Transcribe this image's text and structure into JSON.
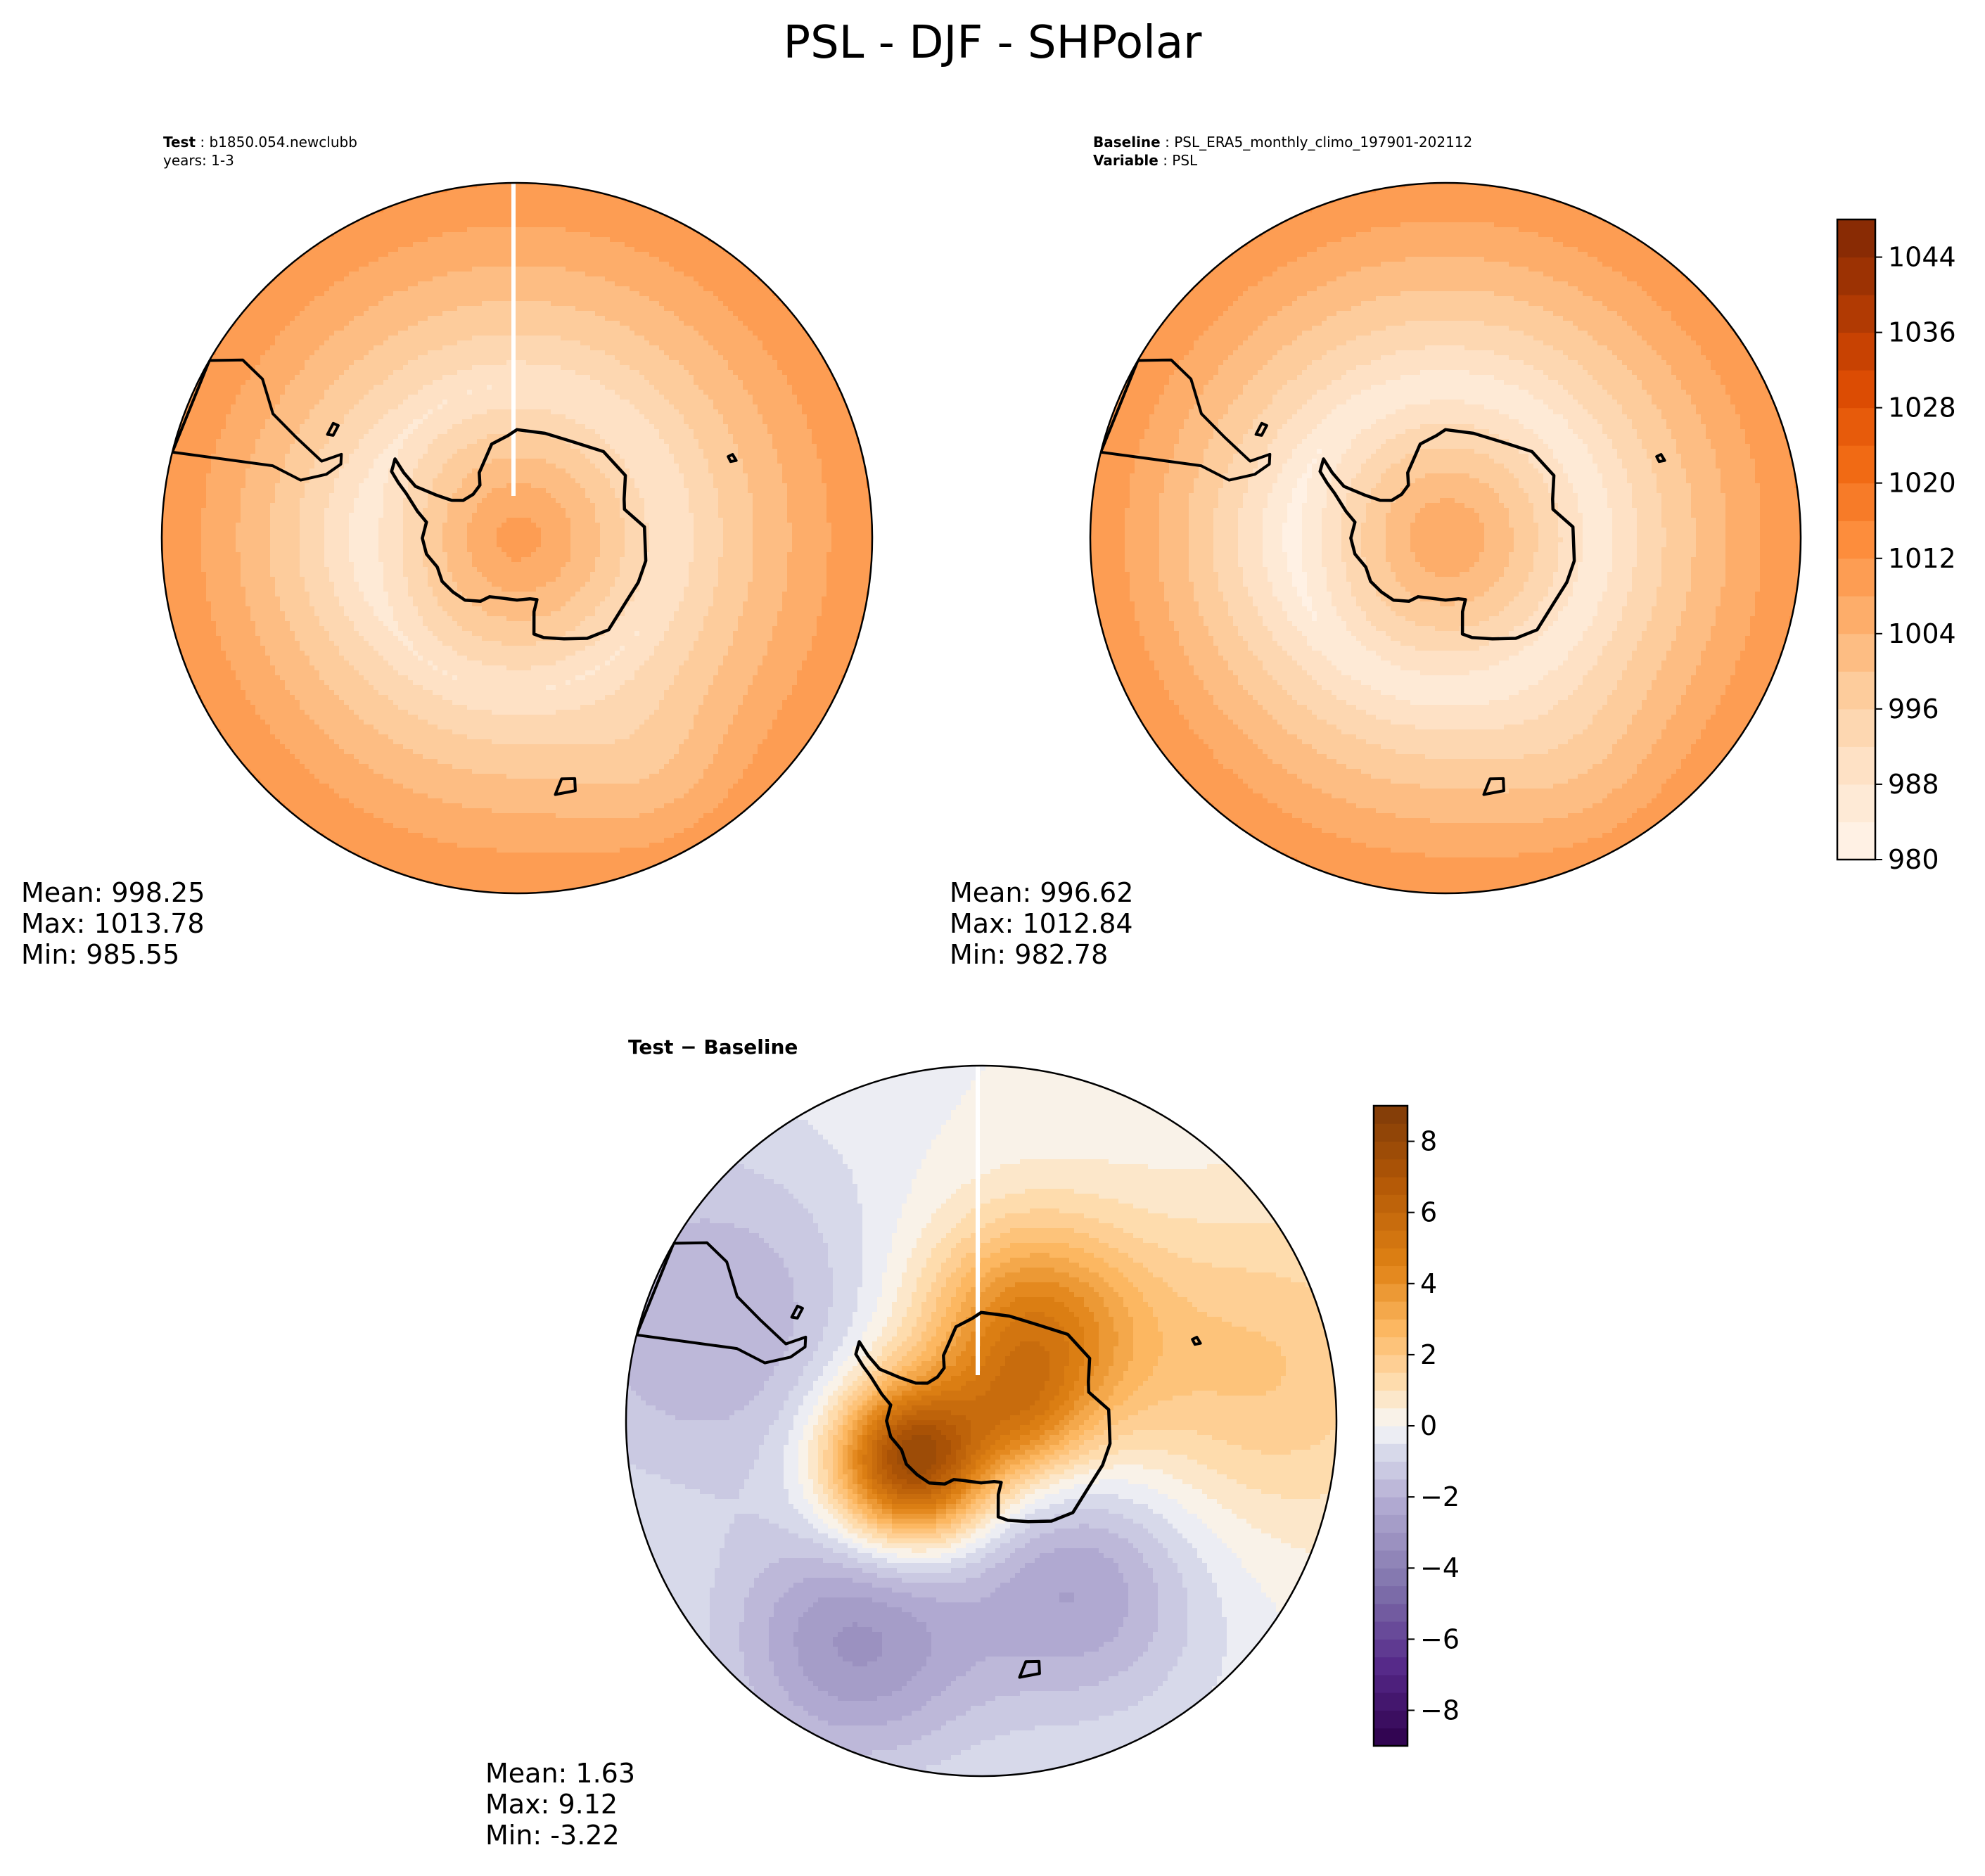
{
  "figure": {
    "title": "PSL - DJF - SHPolar"
  },
  "chart_data": [
    {
      "type": "heatmap",
      "projection": "south-polar-stereographic",
      "panel": "test",
      "header": {
        "bold": "Test",
        "value": "b1850.054.newclubb",
        "line2": "years: 1-3"
      },
      "stats": {
        "mean": "Mean: 998.25",
        "max": "Max: 1013.78",
        "min": "Min: 985.55"
      },
      "field": {
        "polar_max": 1010,
        "belt_min": 988,
        "belt_lat": -62,
        "edge_max": 1012,
        "lat_edge": -30,
        "anomalies": [
          {
            "lon": 150,
            "lat": -42,
            "amp": -4,
            "r": 9
          },
          {
            "lon": -90,
            "lat": -62,
            "amp": -3,
            "r": 12
          }
        ]
      },
      "colormap": "Oranges",
      "range": [
        980,
        1048
      ],
      "meridian_gap": true
    },
    {
      "type": "heatmap",
      "projection": "south-polar-stereographic",
      "panel": "baseline",
      "header": {
        "bold1": "Baseline",
        "value1": "PSL_ERA5_monthly_climo_197901-202112",
        "bold2": "Variable",
        "value2": "PSL"
      },
      "stats": {
        "mean": "Mean: 996.62",
        "max": "Max: 1012.84",
        "min": "Min: 982.78"
      },
      "field": {
        "polar_max": 1008,
        "belt_min": 985,
        "belt_lat": -62,
        "edge_max": 1012,
        "lat_edge": -30,
        "anomalies": [
          {
            "lon": 150,
            "lat": -42,
            "amp": -3,
            "r": 10
          },
          {
            "lon": -90,
            "lat": -60,
            "amp": -3,
            "r": 12
          }
        ]
      },
      "colormap": "Oranges",
      "range": [
        980,
        1048
      ],
      "meridian_gap": false,
      "colorbar": {
        "ticks": [
          980,
          988,
          996,
          1004,
          1012,
          1020,
          1028,
          1036,
          1044
        ],
        "levels": [
          980,
          984,
          988,
          992,
          996,
          1000,
          1004,
          1008,
          1012,
          1016,
          1020,
          1024,
          1028,
          1032,
          1036,
          1040,
          1044,
          1048
        ]
      }
    },
    {
      "type": "heatmap",
      "projection": "south-polar-stereographic",
      "panel": "difference",
      "header": {
        "bold_title": "Test − Baseline"
      },
      "stats": {
        "mean": "Mean:  1.63",
        "max": "Max:  9.12",
        "min": "Min: -3.22"
      },
      "field": {
        "anomalies": [
          {
            "lon": -120,
            "lat": -75,
            "amp": 8,
            "r": 10
          },
          {
            "lon": 30,
            "lat": -72,
            "amp": 5,
            "r": 14
          },
          {
            "lon": 90,
            "lat": -82,
            "amp": 2,
            "r": 8
          },
          {
            "lon": 80,
            "lat": -40,
            "amp": 2,
            "r": 18
          },
          {
            "lon": -150,
            "lat": -45,
            "amp": -3,
            "r": 14
          },
          {
            "lon": -70,
            "lat": -40,
            "amp": -2,
            "r": 20
          },
          {
            "lon": 150,
            "lat": -55,
            "amp": -2.5,
            "r": 15
          }
        ]
      },
      "colormap": "PuOr_r",
      "range": [
        -9,
        9
      ],
      "meridian_gap": true,
      "colorbar": {
        "ticks": [
          8,
          6,
          4,
          2,
          0,
          -2,
          -4,
          -6,
          -8
        ],
        "tick_labels": [
          "8",
          "6",
          "4",
          "2",
          "0",
          "−2",
          "−4",
          "−6",
          "−8"
        ],
        "range": [
          -9,
          9
        ]
      }
    }
  ]
}
